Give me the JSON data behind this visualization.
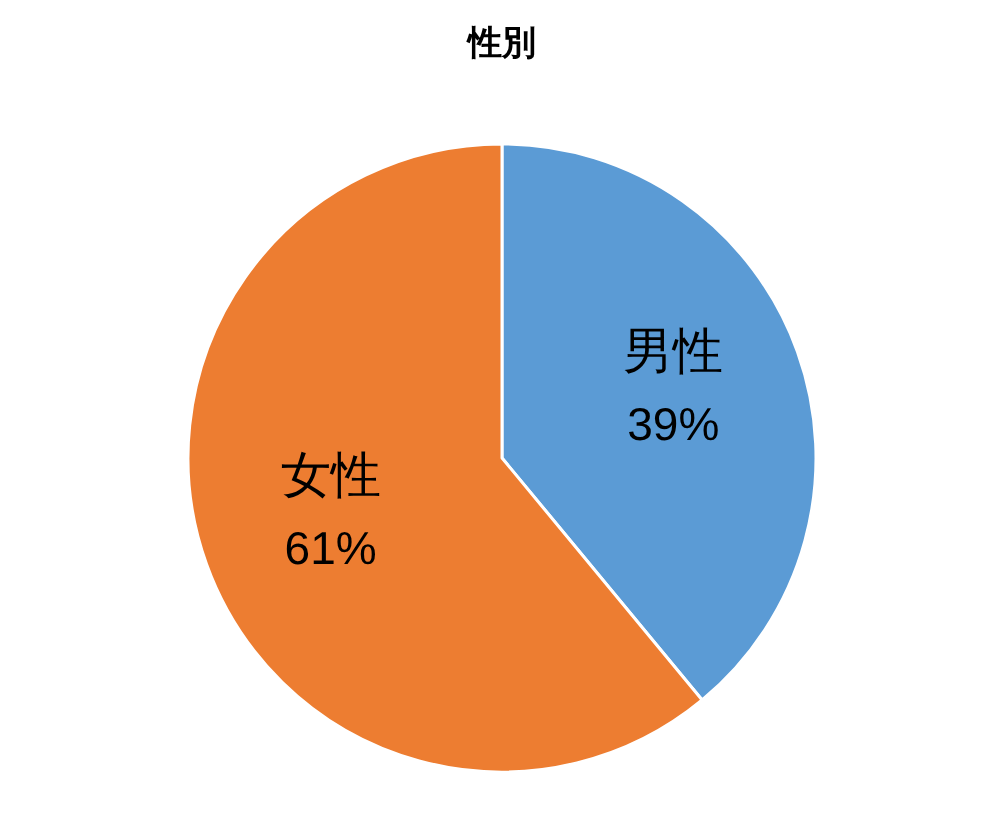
{
  "chart_data": {
    "type": "pie",
    "title": "性別",
    "categories": [
      "男性",
      "女性"
    ],
    "values": [
      39,
      61
    ],
    "colors": [
      "#5b9bd5",
      "#ed7d31"
    ],
    "value_labels": [
      "39%",
      "61%"
    ],
    "legend": false
  }
}
